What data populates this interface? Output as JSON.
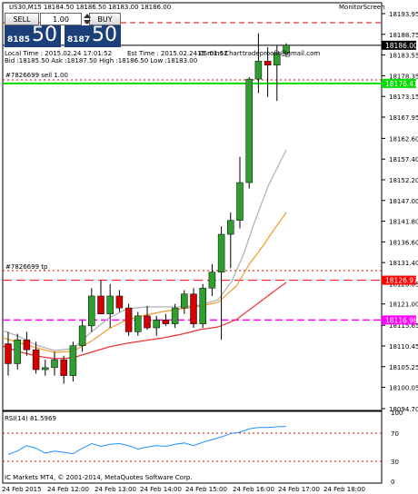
{
  "header": {
    "symbol_line": "US30,M15  18184.50 18186.50 18183.00 18186.00",
    "monitor": "MonitorScreen"
  },
  "trade_panel": {
    "sell_label": "SELL",
    "buy_label": "BUY",
    "lot": "1.00",
    "sell_small": "8185",
    "sell_big": "50",
    "buy_small": "8187",
    "buy_big": "50"
  },
  "info": {
    "local_time": "Local Time : 2015.02.24 17:01:52",
    "est_time": "Est Time : 2015.02.24 05:01:52",
    "chart_tf": "15 mins Chart",
    "site": "tradeproofit@gmail.com",
    "bid_line": "Bid :18185.50 Ask :18187.50 High :18186.50 Low :18183.00"
  },
  "labels": {
    "sell_order": "#7826699 sell 1.00",
    "tp_order": "#7826699 tp",
    "rsi": "RSI(14) 81.5969",
    "copyright": "IC Markets MT4, © 2001-2014, MetaQuotes Software Corp."
  },
  "price_axis": [
    "18193.95",
    "18188.75",
    "18183.55",
    "18178.35",
    "18173.15",
    "18167.95",
    "18162.60",
    "18157.40",
    "18152.20",
    "18147.00",
    "18141.80",
    "18136.60",
    "18131.40",
    "18126.05",
    "18121.00",
    "18115.65",
    "18110.45",
    "18105.25",
    "18100.05",
    "18094.70"
  ],
  "price_tags": {
    "current": "18186.00",
    "green": "18176.41",
    "red": "18126.97",
    "magenta": "18116.98"
  },
  "rsi_axis": [
    "100",
    "70",
    "30",
    "0"
  ],
  "time_axis": [
    "24 Feb 2015",
    "24 Feb 12:00",
    "24 Feb 13:00",
    "24 Feb 14:00",
    "24 Feb 15:00",
    "24 Feb 16:00",
    "24 Feb 17:00",
    "24 Feb 18:00"
  ],
  "colors": {
    "bull": "#2e9e2e",
    "bear": "#d40000",
    "panel": "#1c3f7a",
    "green_line": "#00dd00",
    "red_line": "#ff0000",
    "magenta_line": "#ff00ff"
  },
  "chart_data": {
    "type": "candlestick",
    "symbol": "US30",
    "timeframe": "M15",
    "candles": [
      {
        "o": 18111.0,
        "h": 18114.0,
        "l": 18103.0,
        "c": 18106.0
      },
      {
        "o": 18106.0,
        "h": 18113.5,
        "l": 18104.5,
        "c": 18112.0
      },
      {
        "o": 18112.0,
        "h": 18114.0,
        "l": 18108.0,
        "c": 18109.5
      },
      {
        "o": 18109.5,
        "h": 18111.5,
        "l": 18103.5,
        "c": 18104.5
      },
      {
        "o": 18104.5,
        "h": 18107.0,
        "l": 18103.0,
        "c": 18105.0
      },
      {
        "o": 18105.0,
        "h": 18109.0,
        "l": 18103.0,
        "c": 18107.0
      },
      {
        "o": 18107.0,
        "h": 18108.0,
        "l": 18101.0,
        "c": 18103.0
      },
      {
        "o": 18103.0,
        "h": 18111.5,
        "l": 18101.5,
        "c": 18110.5
      },
      {
        "o": 18110.5,
        "h": 18117.0,
        "l": 18109.0,
        "c": 18115.5
      },
      {
        "o": 18115.5,
        "h": 18125.0,
        "l": 18114.0,
        "c": 18123.0
      },
      {
        "o": 18123.0,
        "h": 18127.0,
        "l": 18118.5,
        "c": 18118.5
      },
      {
        "o": 18118.5,
        "h": 18126.0,
        "l": 18115.0,
        "c": 18123.0
      },
      {
        "o": 18123.0,
        "h": 18124.5,
        "l": 18119.0,
        "c": 18120.0
      },
      {
        "o": 18120.0,
        "h": 18121.0,
        "l": 18113.0,
        "c": 18114.0
      },
      {
        "o": 18114.0,
        "h": 18119.0,
        "l": 18113.0,
        "c": 18118.0
      },
      {
        "o": 18118.0,
        "h": 18120.5,
        "l": 18114.5,
        "c": 18115.0
      },
      {
        "o": 18115.0,
        "h": 18118.0,
        "l": 18113.0,
        "c": 18117.0
      },
      {
        "o": 18117.0,
        "h": 18118.5,
        "l": 18115.5,
        "c": 18116.0
      },
      {
        "o": 18116.0,
        "h": 18121.0,
        "l": 18115.0,
        "c": 18120.0
      },
      {
        "o": 18120.0,
        "h": 18124.5,
        "l": 18118.5,
        "c": 18123.5
      },
      {
        "o": 18123.5,
        "h": 18125.0,
        "l": 18115.0,
        "c": 18116.0
      },
      {
        "o": 18116.0,
        "h": 18126.0,
        "l": 18115.0,
        "c": 18125.0
      },
      {
        "o": 18125.0,
        "h": 18131.0,
        "l": 18123.0,
        "c": 18129.0
      },
      {
        "o": 18129.0,
        "h": 18140.5,
        "l": 18112.0,
        "c": 18138.5
      },
      {
        "o": 18138.5,
        "h": 18144.0,
        "l": 18130.0,
        "c": 18142.0
      },
      {
        "o": 18142.0,
        "h": 18158.0,
        "l": 18140.0,
        "c": 18151.5
      },
      {
        "o": 18151.5,
        "h": 18178.0,
        "l": 18150.0,
        "c": 18177.5
      },
      {
        "o": 18177.5,
        "h": 18189.0,
        "l": 18174.0,
        "c": 18182.0
      },
      {
        "o": 18182.0,
        "h": 18185.5,
        "l": 18173.0,
        "c": 18181.0
      },
      {
        "o": 18181.0,
        "h": 18186.0,
        "l": 18172.0,
        "c": 18184.0
      },
      {
        "o": 18184.0,
        "h": 18186.5,
        "l": 18183.0,
        "c": 18186.0
      }
    ],
    "lines": {
      "green_level": 18176.41,
      "red_level": 18126.97,
      "magenta_level": 18116.98,
      "current_price": 18186.0
    },
    "ylim": [
      18094.7,
      18193.95
    ],
    "rsi": {
      "label": "RSI(14) 81.5969",
      "levels": [
        70,
        30
      ],
      "ylim": [
        0,
        100
      ],
      "values": [
        40,
        45,
        53,
        49,
        42,
        45,
        43,
        41,
        49,
        56,
        52,
        55,
        56,
        53,
        48,
        51,
        53,
        52,
        55,
        57,
        53,
        58,
        62,
        66,
        71,
        73,
        78,
        80,
        80,
        81,
        81.6
      ]
    }
  }
}
